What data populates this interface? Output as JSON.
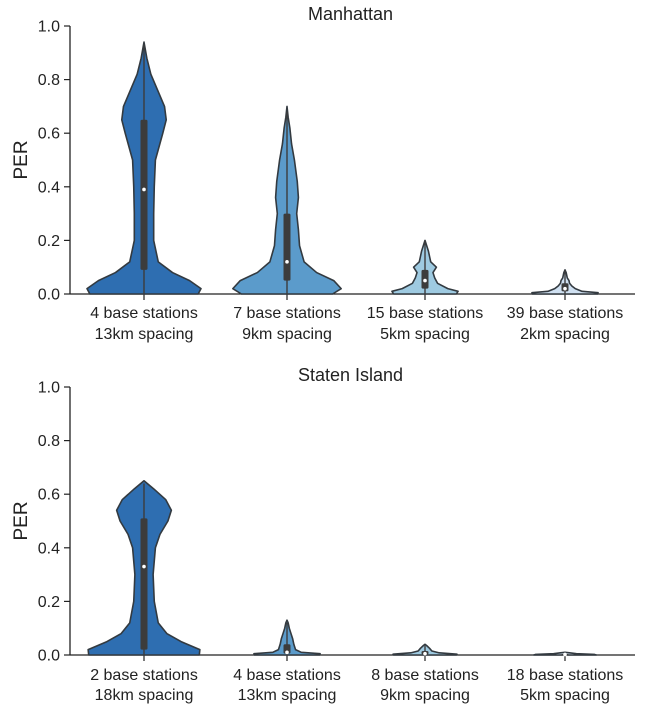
{
  "chart_data": [
    {
      "type": "violin",
      "title": "Manhattan",
      "ylabel": "PER",
      "ylim": [
        0,
        1.0
      ],
      "yticks": [
        "0.0",
        "0.2",
        "0.4",
        "0.6",
        "0.8",
        "1.0"
      ],
      "categories": [
        [
          "4 base stations",
          "13km spacing"
        ],
        [
          "7 base stations",
          "9km spacing"
        ],
        [
          "15 base stations",
          "5km spacing"
        ],
        [
          "39 base stations",
          "2km spacing"
        ]
      ],
      "colors": [
        "#2e6eb1",
        "#5b9bcb",
        "#9ecae1",
        "#cfe0f1"
      ],
      "violins": [
        {
          "max": 0.94,
          "q1": 0.09,
          "median": 0.39,
          "q3": 0.65,
          "whisker_high": 0.93,
          "profile": [
            [
              0.0,
              0.95
            ],
            [
              0.02,
              1.0
            ],
            [
              0.05,
              0.8
            ],
            [
              0.08,
              0.5
            ],
            [
              0.12,
              0.25
            ],
            [
              0.2,
              0.17
            ],
            [
              0.3,
              0.17
            ],
            [
              0.4,
              0.18
            ],
            [
              0.5,
              0.2
            ],
            [
              0.6,
              0.33
            ],
            [
              0.65,
              0.39
            ],
            [
              0.7,
              0.36
            ],
            [
              0.76,
              0.24
            ],
            [
              0.82,
              0.12
            ],
            [
              0.88,
              0.05
            ],
            [
              0.94,
              0.0
            ]
          ]
        },
        {
          "max": 0.7,
          "q1": 0.05,
          "median": 0.12,
          "q3": 0.3,
          "whisker_high": 0.68,
          "profile": [
            [
              0.0,
              0.8
            ],
            [
              0.02,
              0.95
            ],
            [
              0.05,
              0.82
            ],
            [
              0.08,
              0.52
            ],
            [
              0.12,
              0.3
            ],
            [
              0.18,
              0.22
            ],
            [
              0.24,
              0.2
            ],
            [
              0.3,
              0.17
            ],
            [
              0.36,
              0.2
            ],
            [
              0.42,
              0.18
            ],
            [
              0.5,
              0.13
            ],
            [
              0.56,
              0.08
            ],
            [
              0.62,
              0.05
            ],
            [
              0.66,
              0.02
            ],
            [
              0.7,
              0.0
            ]
          ]
        },
        {
          "max": 0.2,
          "q1": 0.02,
          "median": 0.05,
          "q3": 0.09,
          "whisker_high": 0.2,
          "profile": [
            [
              0.0,
              0.55
            ],
            [
              0.01,
              0.58
            ],
            [
              0.02,
              0.4
            ],
            [
              0.04,
              0.22
            ],
            [
              0.06,
              0.17
            ],
            [
              0.08,
              0.14
            ],
            [
              0.1,
              0.2
            ],
            [
              0.12,
              0.1
            ],
            [
              0.14,
              0.08
            ],
            [
              0.16,
              0.06
            ],
            [
              0.18,
              0.03
            ],
            [
              0.2,
              0.0
            ]
          ]
        },
        {
          "max": 0.09,
          "q1": 0.01,
          "median": 0.02,
          "q3": 0.04,
          "whisker_high": 0.09,
          "profile": [
            [
              0.0,
              0.57
            ],
            [
              0.005,
              0.58
            ],
            [
              0.01,
              0.3
            ],
            [
              0.02,
              0.18
            ],
            [
              0.03,
              0.12
            ],
            [
              0.04,
              0.08
            ],
            [
              0.05,
              0.07
            ],
            [
              0.06,
              0.04
            ],
            [
              0.08,
              0.02
            ],
            [
              0.09,
              0.0
            ]
          ]
        }
      ]
    },
    {
      "type": "violin",
      "title": "Staten Island",
      "ylabel": "PER",
      "ylim": [
        0,
        1.0
      ],
      "yticks": [
        "0.0",
        "0.2",
        "0.4",
        "0.6",
        "0.8",
        "1.0"
      ],
      "categories": [
        [
          "2 base stations",
          "18km spacing"
        ],
        [
          "4 base stations",
          "13km spacing"
        ],
        [
          "8 base stations",
          "9km spacing"
        ],
        [
          "18 base stations",
          "5km spacing"
        ]
      ],
      "colors": [
        "#2e6eb1",
        "#5b9bcb",
        "#9ecae1",
        "#cfe0f1"
      ],
      "violins": [
        {
          "max": 0.65,
          "q1": 0.02,
          "median": 0.33,
          "q3": 0.51,
          "whisker_high": 0.64,
          "profile": [
            [
              0.0,
              0.97
            ],
            [
              0.02,
              0.98
            ],
            [
              0.05,
              0.65
            ],
            [
              0.08,
              0.4
            ],
            [
              0.12,
              0.25
            ],
            [
              0.2,
              0.18
            ],
            [
              0.3,
              0.16
            ],
            [
              0.4,
              0.2
            ],
            [
              0.45,
              0.28
            ],
            [
              0.5,
              0.42
            ],
            [
              0.54,
              0.48
            ],
            [
              0.58,
              0.38
            ],
            [
              0.62,
              0.17
            ],
            [
              0.65,
              0.0
            ]
          ]
        },
        {
          "max": 0.13,
          "q1": 0.005,
          "median": 0.01,
          "q3": 0.04,
          "whisker_high": 0.12,
          "profile": [
            [
              0.0,
              0.57
            ],
            [
              0.005,
              0.58
            ],
            [
              0.01,
              0.25
            ],
            [
              0.02,
              0.15
            ],
            [
              0.04,
              0.12
            ],
            [
              0.06,
              0.1
            ],
            [
              0.08,
              0.07
            ],
            [
              0.1,
              0.04
            ],
            [
              0.12,
              0.02
            ],
            [
              0.13,
              0.0
            ]
          ]
        },
        {
          "max": 0.04,
          "q1": 0.002,
          "median": 0.005,
          "q3": 0.015,
          "whisker_high": 0.035,
          "profile": [
            [
              0.0,
              0.55
            ],
            [
              0.003,
              0.56
            ],
            [
              0.008,
              0.25
            ],
            [
              0.015,
              0.12
            ],
            [
              0.025,
              0.08
            ],
            [
              0.035,
              0.03
            ],
            [
              0.04,
              0.0
            ]
          ]
        },
        {
          "max": 0.01,
          "q1": 0.001,
          "median": 0.002,
          "q3": 0.004,
          "whisker_high": 0.008,
          "profile": [
            [
              0.0,
              0.55
            ],
            [
              0.002,
              0.52
            ],
            [
              0.005,
              0.2
            ],
            [
              0.008,
              0.08
            ],
            [
              0.01,
              0.0
            ]
          ]
        }
      ]
    }
  ]
}
